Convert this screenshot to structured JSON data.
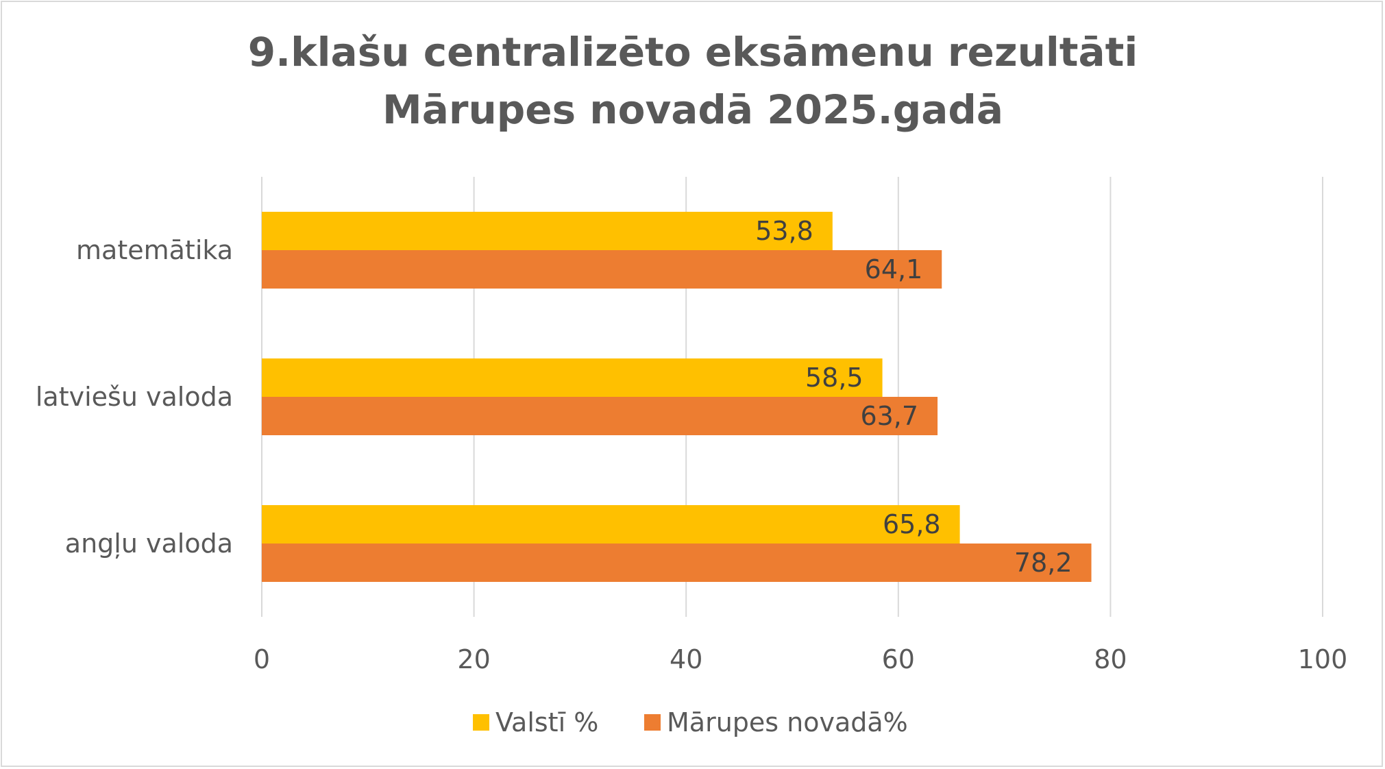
{
  "chart_data": {
    "type": "bar",
    "orientation": "horizontal",
    "title": [
      "9.klašu centralizēto eksāmenu  rezultāti",
      "Mārupes novadā 2025.gadā"
    ],
    "categories": [
      "matemātika",
      "latviešu valoda",
      "angļu valoda"
    ],
    "series": [
      {
        "name": "Valstī %",
        "color": "#ffc000",
        "values": [
          53.8,
          58.5,
          65.8
        ],
        "labels": [
          "53,8",
          "58,5",
          "65,8"
        ]
      },
      {
        "name": "Mārupes novadā%",
        "color": "#ed7d31",
        "values": [
          64.1,
          63.7,
          78.2
        ],
        "labels": [
          "64,1",
          "63,7",
          "78,2"
        ]
      }
    ],
    "xlim": [
      0,
      100
    ],
    "xticks": [
      0,
      20,
      40,
      60,
      80,
      100
    ],
    "xtick_labels": [
      "0",
      "20",
      "40",
      "60",
      "80",
      "100"
    ],
    "xlabel": "",
    "ylabel": "",
    "grid": true,
    "legend_position": "bottom"
  }
}
